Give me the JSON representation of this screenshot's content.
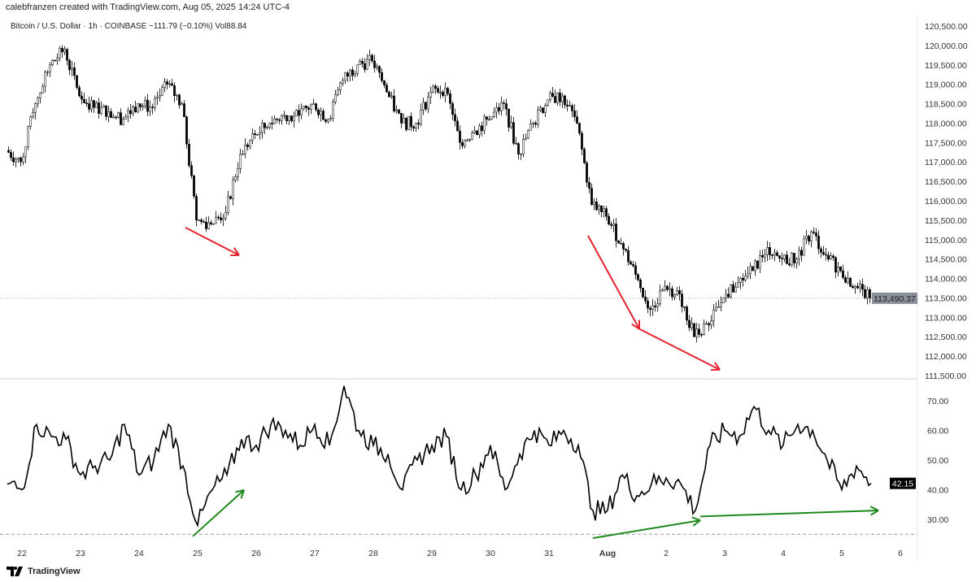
{
  "header": {
    "created": "calebfranzen created with TradingView.com, Aug 05, 2025 14:24 UTC-4"
  },
  "legend": {
    "text": "Bitcoin / U.S. Dollar · 1h · COINBASE  −111.79 (−0.10%)  Vol88.84"
  },
  "footer": {
    "brand": "TradingView"
  },
  "colors": {
    "up": "#ffffff",
    "down": "#000000",
    "arrow_red": "#e8232f",
    "arrow_green": "#1e8a1e",
    "price_tag": "#8b8f99",
    "rsi_tag": "#000000"
  },
  "chart_data": [
    {
      "type": "candlestick",
      "ylim": [
        111500,
        120500
      ],
      "yticks": [
        "120,500.00",
        "120,000.00",
        "119,500.00",
        "119,000.00",
        "118,500.00",
        "118,000.00",
        "117,500.00",
        "117,000.00",
        "116,500.00",
        "116,000.00",
        "115,500.00",
        "115,000.00",
        "114,500.00",
        "114,000.00",
        "113,500.00",
        "113,000.00",
        "112,500.00",
        "112,000.00",
        "111,500.00"
      ],
      "yticks_values": [
        120500,
        120000,
        119500,
        119000,
        118500,
        118000,
        117500,
        117000,
        116500,
        116000,
        115500,
        115000,
        114500,
        114000,
        113500,
        113000,
        112500,
        112000,
        111500
      ],
      "last_price": 113490.37,
      "last_price_label": "113,490.37",
      "start": "2025-07-21T18:00",
      "step_hours": 6,
      "closes": [
        117300,
        117000,
        118500,
        119500,
        119900,
        118700,
        118400,
        118300,
        118100,
        118500,
        118400,
        119000,
        118500,
        115500,
        115400,
        115700,
        117200,
        117700,
        118000,
        118200,
        118200,
        118500,
        118100,
        119100,
        119500,
        119600,
        118800,
        118000,
        118000,
        118800,
        118900,
        117500,
        117800,
        118100,
        118500,
        117200,
        118000,
        118600,
        118700,
        118000,
        115900,
        115600,
        114900,
        114100,
        113200,
        113800,
        113600,
        112500,
        112800,
        113500,
        113900,
        114200,
        114800,
        114500,
        114500,
        115200,
        114600,
        114200,
        113800,
        113490
      ],
      "annotations": [
        {
          "color": "red",
          "from": [
            "2025-07-24T19:00",
            115310
          ],
          "to": [
            "2025-07-25T17:00",
            114600
          ]
        },
        {
          "color": "red",
          "from": [
            "2025-07-31T16:00",
            115100
          ],
          "to": [
            "2025-08-01T13:00",
            112700
          ]
        },
        {
          "color": "red",
          "from": [
            "2025-08-01T13:00",
            112700
          ],
          "to": [
            "2025-08-02T22:00",
            111650
          ]
        }
      ]
    },
    {
      "type": "line",
      "ylim": [
        25,
        75
      ],
      "yticks": [
        "70.00",
        "60.00",
        "50.00",
        "40.00",
        "30.00"
      ],
      "yticks_values": [
        70,
        60,
        50,
        40,
        30
      ],
      "reference_line": 25,
      "last_value": 42.15,
      "last_value_label": "42.15",
      "start": "2025-07-21T18:00",
      "step_hours": 6,
      "values": [
        42,
        40,
        62,
        58,
        57,
        45,
        48,
        50,
        62,
        45,
        50,
        62,
        48,
        28,
        40,
        45,
        57,
        55,
        62,
        60,
        55,
        62,
        55,
        75,
        60,
        55,
        52,
        40,
        50,
        55,
        58,
        40,
        45,
        55,
        40,
        52,
        60,
        55,
        60,
        55,
        33,
        33,
        45,
        38,
        42,
        44,
        42,
        33,
        55,
        60,
        58,
        68,
        60,
        55,
        62,
        60,
        50,
        40,
        48,
        42.15
      ],
      "annotations": [
        {
          "color": "green",
          "from": [
            "2025-07-24T22:00",
            24.3
          ],
          "to": [
            "2025-07-25T19:00",
            39.9
          ]
        },
        {
          "color": "green",
          "from": [
            "2025-07-31T18:00",
            23.7
          ],
          "to": [
            "2025-08-02T14:00",
            29.7
          ]
        },
        {
          "color": "green",
          "from": [
            "2025-08-02T14:00",
            31
          ],
          "to": [
            "2025-08-05T15:00",
            33
          ]
        }
      ]
    }
  ],
  "xaxis": {
    "ticks": [
      "22",
      "23",
      "24",
      "25",
      "26",
      "27",
      "28",
      "29",
      "30",
      "31",
      "Aug",
      "2",
      "3",
      "4",
      "5",
      "6"
    ],
    "tick_dates": [
      "2025-07-22",
      "2025-07-23",
      "2025-07-24",
      "2025-07-25",
      "2025-07-26",
      "2025-07-27",
      "2025-07-28",
      "2025-07-29",
      "2025-07-30",
      "2025-07-31",
      "2025-08-01",
      "2025-08-02",
      "2025-08-03",
      "2025-08-04",
      "2025-08-05",
      "2025-08-06"
    ]
  }
}
